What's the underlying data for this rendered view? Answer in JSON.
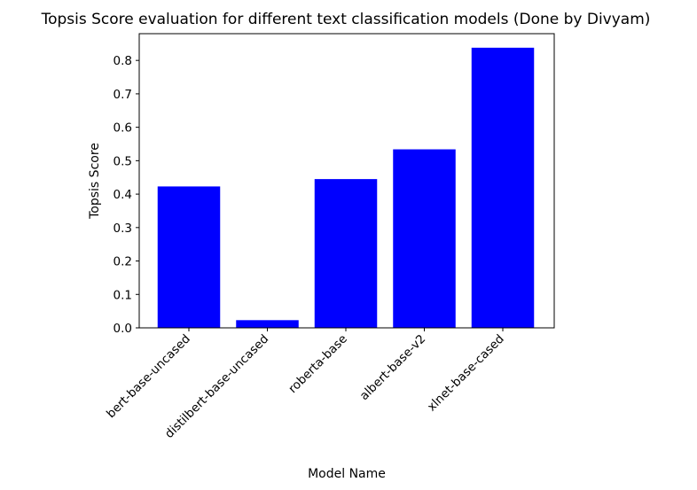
{
  "chart_data": {
    "type": "bar",
    "title": "Topsis Score evaluation for different text classification models (Done by Divyam)",
    "xlabel": "Model Name",
    "ylabel": "Topsis Score",
    "categories": [
      "bert-base-uncased",
      "distilbert-base-uncased",
      "roberta-base",
      "albert-base-v2",
      "xlnet-base-cased"
    ],
    "values": [
      0.423,
      0.023,
      0.445,
      0.534,
      0.838
    ],
    "ylim": [
      0,
      0.88
    ],
    "yticks": [
      0.0,
      0.1,
      0.2,
      0.3,
      0.4,
      0.5,
      0.6,
      0.7,
      0.8
    ],
    "ytick_labels": [
      "0.0",
      "0.1",
      "0.2",
      "0.3",
      "0.4",
      "0.5",
      "0.6",
      "0.7",
      "0.8"
    ],
    "bar_color": "#0000ff",
    "grid": false,
    "legend": "none"
  }
}
